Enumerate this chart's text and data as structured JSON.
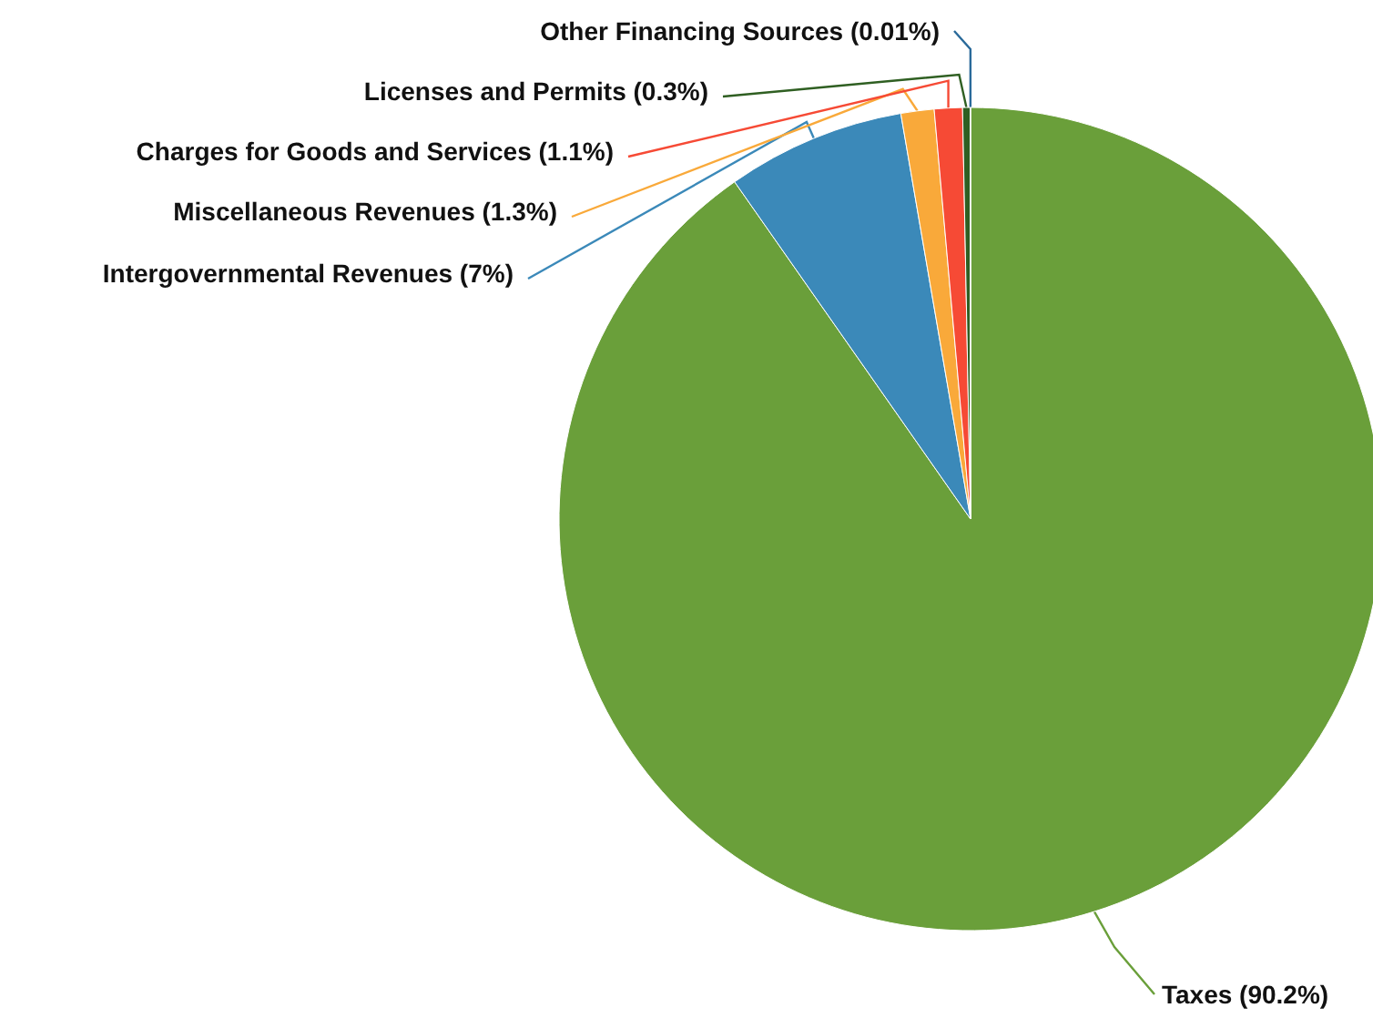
{
  "chart_data": {
    "type": "pie",
    "categories": [
      "Taxes",
      "Intergovernmental Revenues",
      "Miscellaneous Revenues",
      "Charges for Goods and Services",
      "Licenses and Permits",
      "Other Financing Sources"
    ],
    "values": [
      90.2,
      7,
      1.3,
      1.1,
      0.3,
      0.01
    ],
    "value_labels": [
      "(90.2%)",
      "(7%)",
      "(1.3%)",
      "(1.1%)",
      "(0.3%)",
      "(0.01%)"
    ],
    "colors": [
      "#6a9f3a",
      "#3b89b9",
      "#f9a93a",
      "#f64a35",
      "#2f5f22",
      "#2a6a9a"
    ],
    "legend": false
  }
}
